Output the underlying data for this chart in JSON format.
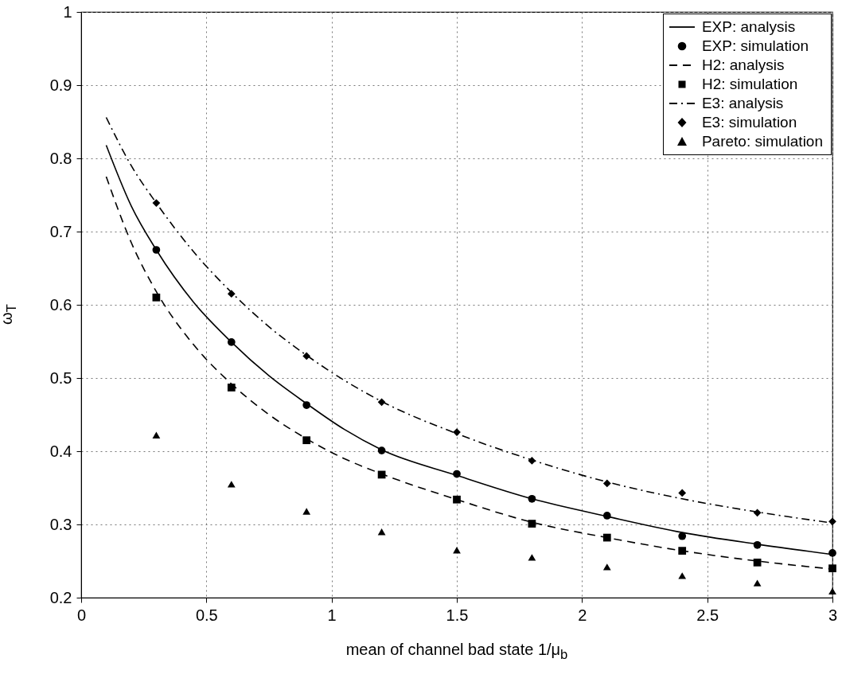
{
  "chart_data": {
    "type": "line",
    "xlabel": "mean of channel bad state 1/μ$_{b}$",
    "ylabel": "ω$_{T}$",
    "xlim": [
      0,
      3
    ],
    "ylim": [
      0.2,
      1
    ],
    "xticks": [
      0,
      0.5,
      1,
      1.5,
      2,
      2.5,
      3
    ],
    "yticks": [
      0.2,
      0.3,
      0.4,
      0.5,
      0.6,
      0.7,
      0.8,
      0.9,
      1
    ],
    "grid": true,
    "legend": "top right",
    "series": [
      {
        "name": "EXP: analysis",
        "type": "line",
        "line_style": "solid",
        "color": "#000000",
        "x": [
          0.1,
          0.2,
          0.3,
          0.45,
          0.6,
          0.75,
          0.9,
          1.05,
          1.2,
          1.5,
          1.8,
          2.1,
          2.4,
          2.7,
          3
        ],
        "values": [
          0.818,
          0.735,
          0.675,
          0.603,
          0.549,
          0.503,
          0.465,
          0.43,
          0.402,
          0.367,
          0.335,
          0.311,
          0.289,
          0.273,
          0.259
        ]
      },
      {
        "name": "EXP: simulation",
        "type": "scatter",
        "marker": "circle",
        "color": "#000000",
        "x": [
          0.3,
          0.6,
          0.9,
          1.2,
          1.5,
          1.8,
          2.1,
          2.4,
          2.7,
          3
        ],
        "values": [
          0.675,
          0.549,
          0.463,
          0.401,
          0.369,
          0.335,
          0.312,
          0.284,
          0.272,
          0.261
        ]
      },
      {
        "name": "H2: analysis",
        "type": "line",
        "line_style": "dashed",
        "color": "#000000",
        "x": [
          0.1,
          0.2,
          0.3,
          0.45,
          0.6,
          0.75,
          0.9,
          1.05,
          1.2,
          1.5,
          1.8,
          2.1,
          2.4,
          2.7,
          3
        ],
        "values": [
          0.775,
          0.685,
          0.618,
          0.545,
          0.492,
          0.45,
          0.417,
          0.39,
          0.369,
          0.334,
          0.303,
          0.282,
          0.264,
          0.25,
          0.239
        ]
      },
      {
        "name": "H2: simulation",
        "type": "scatter",
        "marker": "square",
        "color": "#000000",
        "x": [
          0.3,
          0.6,
          0.9,
          1.2,
          1.5,
          1.8,
          2.1,
          2.4,
          2.7,
          3
        ],
        "values": [
          0.61,
          0.487,
          0.415,
          0.368,
          0.334,
          0.301,
          0.282,
          0.264,
          0.248,
          0.24
        ]
      },
      {
        "name": "E3: analysis",
        "type": "line",
        "line_style": "dashdot",
        "color": "#000000",
        "x": [
          0.1,
          0.2,
          0.3,
          0.45,
          0.6,
          0.75,
          0.9,
          1.05,
          1.2,
          1.5,
          1.8,
          2.1,
          2.4,
          2.7,
          3
        ],
        "values": [
          0.856,
          0.79,
          0.739,
          0.672,
          0.617,
          0.57,
          0.531,
          0.497,
          0.468,
          0.424,
          0.388,
          0.358,
          0.335,
          0.317,
          0.302
        ]
      },
      {
        "name": "E3: simulation",
        "type": "scatter",
        "marker": "diamond",
        "color": "#000000",
        "x": [
          0.3,
          0.6,
          0.9,
          1.2,
          1.5,
          1.8,
          2.1,
          2.4,
          2.7,
          3
        ],
        "values": [
          0.739,
          0.615,
          0.53,
          0.467,
          0.426,
          0.387,
          0.356,
          0.343,
          0.316,
          0.304
        ]
      },
      {
        "name": "Pareto: simulation",
        "type": "scatter",
        "marker": "triangle",
        "color": "#000000",
        "x": [
          0.3,
          0.6,
          0.9,
          1.2,
          1.5,
          1.8,
          2.1,
          2.4,
          2.7,
          3
        ],
        "values": [
          0.422,
          0.355,
          0.318,
          0.29,
          0.265,
          0.255,
          0.242,
          0.23,
          0.22,
          0.209
        ]
      }
    ]
  }
}
